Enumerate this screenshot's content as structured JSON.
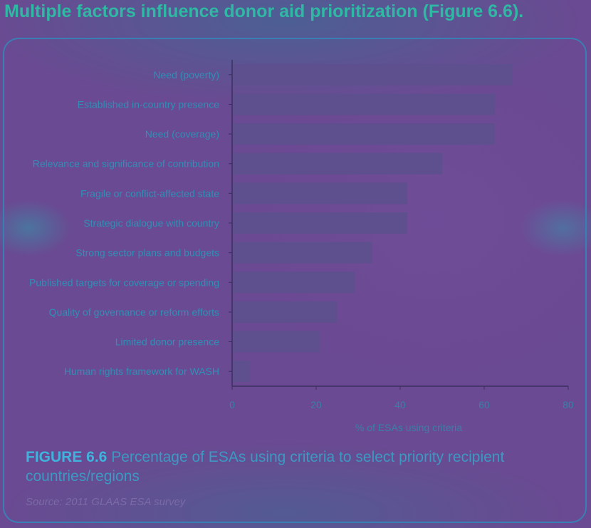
{
  "headline": "Multiple factors influence donor aid prioritization (Figure 6.6).",
  "caption": {
    "figure_label": "FIGURE 6.6",
    "text": " Percentage of ESAs using criteria to select priority recipient countries/regions"
  },
  "source": "Source: 2011 GLAAS ESA survey",
  "colors": {
    "bar": "#5e4f8e",
    "axis": "#3a3060",
    "label": "#2f8fb6",
    "tick": "#3b7fa8"
  },
  "chart_data": {
    "type": "bar",
    "orientation": "horizontal",
    "categories": [
      "Need (poverty)",
      "Established in-country presence",
      "Need (coverage)",
      "Relevance and significance of contribution",
      "Fragile or conflict-affected state",
      "Strategic dialogue with country",
      "Strong sector plans and budgets",
      "Published targets for coverage or spending",
      "Quality of governance or reform efforts",
      "Limited donor presence",
      "Human rights framework for WASH"
    ],
    "values": [
      66.7,
      62.5,
      62.5,
      50,
      41.7,
      41.7,
      33.3,
      29.2,
      25,
      20.8,
      4.2
    ],
    "xlabel": "% of ESAs using criteria",
    "ylabel": "",
    "xlim": [
      0,
      80
    ],
    "xticks": [
      0,
      20,
      40,
      60,
      80
    ],
    "grid": false
  }
}
